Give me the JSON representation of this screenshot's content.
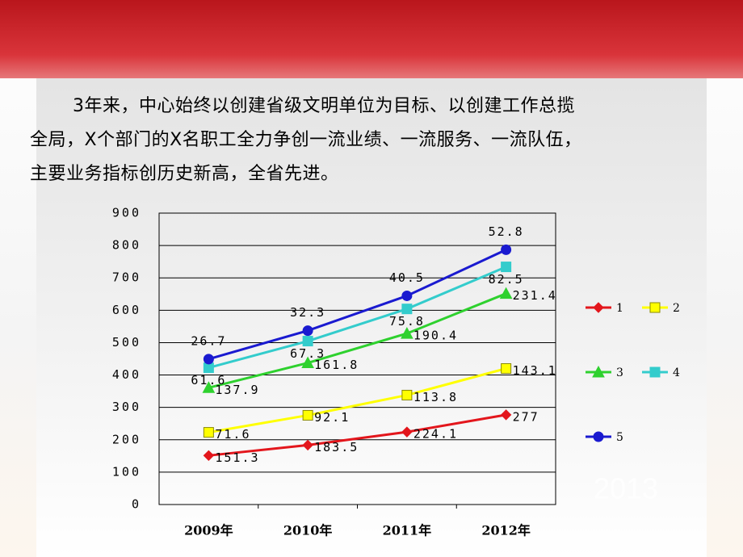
{
  "paragraph": [
    "3年来，中心始终以创建省级文明单位为目标、以创建工作总揽",
    "全局，X个部门的X名职工全力争创一流业绩、一流服务、一流队伍，",
    "主要业务指标创历史新高，全省先进。"
  ],
  "decoration_text": "2013",
  "chart_data": {
    "type": "line",
    "stacked": true,
    "grid": true,
    "categories": [
      "2009年",
      "2010年",
      "2011年",
      "2012年"
    ],
    "ylim": [
      0,
      900
    ],
    "yticks": [
      0,
      100,
      200,
      300,
      400,
      500,
      600,
      700,
      800,
      900
    ],
    "series": [
      {
        "name": "1",
        "color": "#e3161c",
        "marker": "diamond",
        "values": [
          151.3,
          183.5,
          224.1,
          277
        ]
      },
      {
        "name": "2",
        "color": "#ffff00",
        "marker": "square",
        "values": [
          71.6,
          92.1,
          113.8,
          143.1
        ]
      },
      {
        "name": "3",
        "color": "#2ed12e",
        "marker": "triangle",
        "values": [
          137.9,
          161.8,
          190.4,
          231.4
        ]
      },
      {
        "name": "4",
        "color": "#33cccc",
        "marker": "square",
        "values": [
          61.6,
          67.3,
          75.8,
          82.5
        ]
      },
      {
        "name": "5",
        "color": "#1a1ad0",
        "marker": "circle",
        "values": [
          26.7,
          32.3,
          40.5,
          52.8
        ]
      }
    ]
  }
}
